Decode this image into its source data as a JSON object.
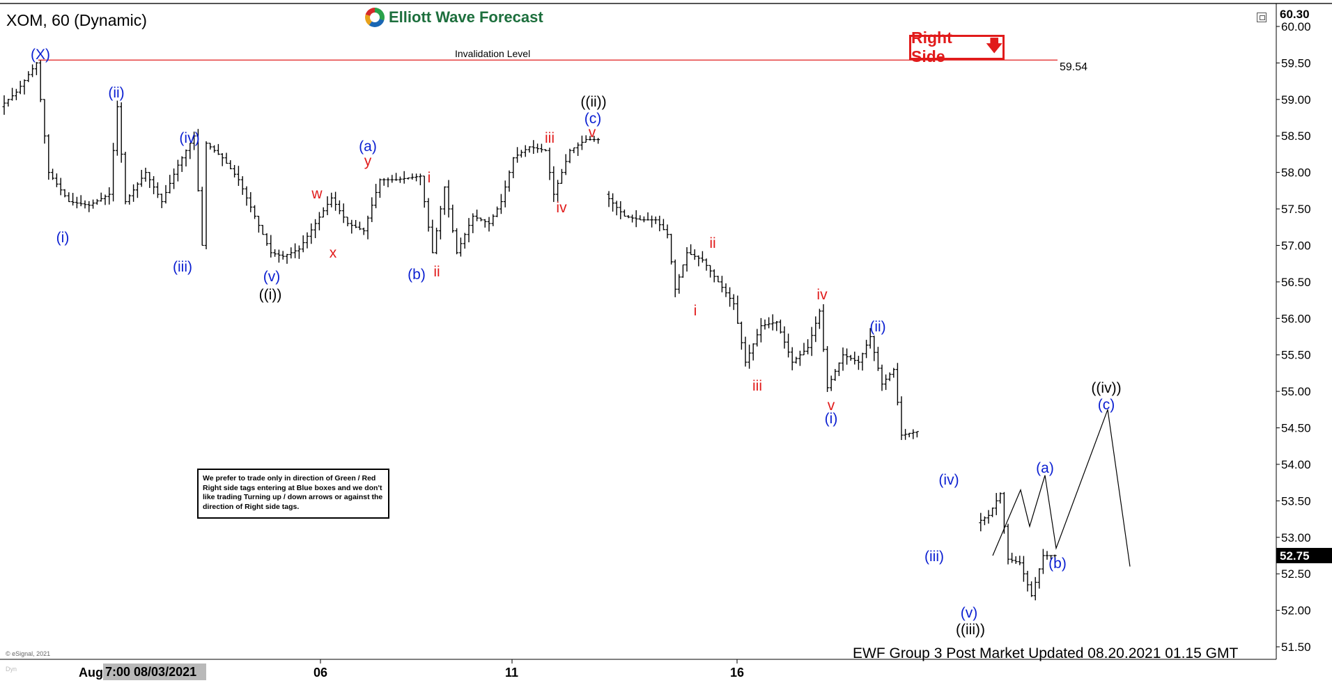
{
  "header": {
    "symbol_title": "XOM, 60 (Dynamic)",
    "brand": "Elliott Wave Forecast",
    "right_side_tag": "Right Side",
    "invalidation_label": "Invalidation Level",
    "invalidation_value": "59.54",
    "current_price": "52.75",
    "top_price": "60.30"
  },
  "note": "We prefer to trade only in direction of Green / Red Right side tags entering at Blue boxes and we don't like trading Turning up / down arrows or against the direction of Right side tags.",
  "footer": {
    "update_text": "EWF Group 3 Post Market Updated 08.20.2021 01.15 GMT",
    "copyright": "© eSignal, 2021",
    "dyn_label": "Dyn",
    "date_box": "7:00 08/03/2021",
    "x_axis_partial": "Aug"
  },
  "colors": {
    "blue_label": "#0b1fd1",
    "red_label": "#e11b1b",
    "black_label": "#000000",
    "invalidation_line": "#e11b1b",
    "axis": "#000000"
  },
  "chart_data": {
    "type": "bar",
    "title": "XOM, 60 (Dynamic)",
    "ylim": [
      51.5,
      60.3
    ],
    "y_ticks": [
      "51.50",
      "52.00",
      "52.50",
      "53.00",
      "53.50",
      "54.00",
      "54.50",
      "55.00",
      "55.50",
      "56.00",
      "56.50",
      "57.00",
      "57.50",
      "58.00",
      "58.50",
      "59.00",
      "59.50",
      "60.00"
    ],
    "x_ticks": [
      "06",
      "11",
      "16"
    ],
    "invalidation_level": 59.54,
    "last_price": 52.75,
    "price_path": [
      [
        0,
        58.9
      ],
      [
        4,
        59.1
      ],
      [
        9,
        59.5
      ],
      [
        12,
        58.0
      ],
      [
        17,
        57.6
      ],
      [
        22,
        57.55
      ],
      [
        27,
        57.7
      ],
      [
        29,
        58.9
      ],
      [
        31,
        57.6
      ],
      [
        36,
        58.0
      ],
      [
        40,
        57.6
      ],
      [
        44,
        58.1
      ],
      [
        48,
        58.5
      ],
      [
        50,
        57.0
      ],
      [
        51,
        58.4
      ],
      [
        55,
        58.2
      ],
      [
        59,
        57.9
      ],
      [
        63,
        57.4
      ],
      [
        67,
        56.9
      ],
      [
        70,
        56.85
      ],
      [
        74,
        56.95
      ],
      [
        78,
        57.3
      ],
      [
        82,
        57.65
      ],
      [
        86,
        57.3
      ],
      [
        90,
        57.2
      ],
      [
        94,
        57.9
      ],
      [
        98,
        57.9
      ],
      [
        104,
        57.95
      ],
      [
        107,
        56.9
      ],
      [
        110,
        57.8
      ],
      [
        113,
        56.9
      ],
      [
        117,
        57.4
      ],
      [
        121,
        57.3
      ],
      [
        124,
        57.6
      ],
      [
        127,
        58.2
      ],
      [
        131,
        58.35
      ],
      [
        135,
        58.3
      ],
      [
        137,
        57.7
      ],
      [
        141,
        58.3
      ],
      [
        145,
        58.45
      ],
      [
        148,
        58.45
      ]
    ],
    "price_path_2": [
      [
        155,
        57.7
      ],
      [
        160,
        57.4
      ],
      [
        164,
        57.35
      ],
      [
        168,
        57.35
      ],
      [
        171,
        57.15
      ],
      [
        173,
        56.4
      ],
      [
        176,
        56.9
      ],
      [
        180,
        56.8
      ],
      [
        184,
        56.5
      ],
      [
        188,
        56.2
      ],
      [
        191,
        55.4
      ],
      [
        195,
        55.9
      ],
      [
        199,
        55.95
      ],
      [
        203,
        55.4
      ],
      [
        207,
        55.6
      ],
      [
        210,
        56.1
      ],
      [
        212,
        55.05
      ],
      [
        216,
        55.5
      ],
      [
        220,
        55.4
      ],
      [
        223,
        55.75
      ],
      [
        226,
        55.1
      ],
      [
        229,
        55.3
      ],
      [
        231,
        54.4
      ],
      [
        235,
        54.45
      ]
    ],
    "price_path_3": [
      [
        238,
        53.2
      ],
      [
        241,
        53.3
      ],
      [
        244,
        53.6
      ],
      [
        246,
        52.7
      ],
      [
        249,
        52.65
      ],
      [
        252,
        52.2
      ],
      [
        255,
        52.75
      ],
      [
        258,
        52.75
      ]
    ],
    "projection": [
      [
        52.75
      ],
      [
        53.65
      ],
      [
        53.15
      ],
      [
        53.85
      ],
      [
        52.85
      ],
      [
        54.75
      ],
      [
        52.6
      ]
    ],
    "wave_labels": [
      {
        "text": "(X)",
        "color": "blue"
      },
      {
        "text": "(i)",
        "color": "blue"
      },
      {
        "text": "(ii)",
        "color": "blue"
      },
      {
        "text": "(iii)",
        "color": "blue"
      },
      {
        "text": "(iv)",
        "color": "blue"
      },
      {
        "text": "(v)",
        "color": "blue"
      },
      {
        "text": "((i))",
        "color": "black"
      },
      {
        "text": "w",
        "color": "red"
      },
      {
        "text": "x",
        "color": "red"
      },
      {
        "text": "(a)",
        "color": "blue"
      },
      {
        "text": "y",
        "color": "red"
      },
      {
        "text": "(b)",
        "color": "blue"
      },
      {
        "text": "i",
        "color": "red"
      },
      {
        "text": "ii",
        "color": "red"
      },
      {
        "text": "iii",
        "color": "red"
      },
      {
        "text": "iv",
        "color": "red"
      },
      {
        "text": "v",
        "color": "red"
      },
      {
        "text": "(c)",
        "color": "blue"
      },
      {
        "text": "((ii))",
        "color": "black"
      },
      {
        "text": "i",
        "color": "red"
      },
      {
        "text": "ii",
        "color": "red"
      },
      {
        "text": "iii",
        "color": "red"
      },
      {
        "text": "iv",
        "color": "red"
      },
      {
        "text": "v",
        "color": "red"
      },
      {
        "text": "(i)",
        "color": "blue"
      },
      {
        "text": "(ii)",
        "color": "blue"
      },
      {
        "text": "(iii)",
        "color": "blue"
      },
      {
        "text": "(iv)",
        "color": "blue"
      },
      {
        "text": "(v)",
        "color": "blue"
      },
      {
        "text": "((iii))",
        "color": "black"
      },
      {
        "text": "(a)",
        "color": "blue"
      },
      {
        "text": "(b)",
        "color": "blue"
      },
      {
        "text": "(c)",
        "color": "blue"
      },
      {
        "text": "((iv))",
        "color": "black"
      }
    ]
  }
}
